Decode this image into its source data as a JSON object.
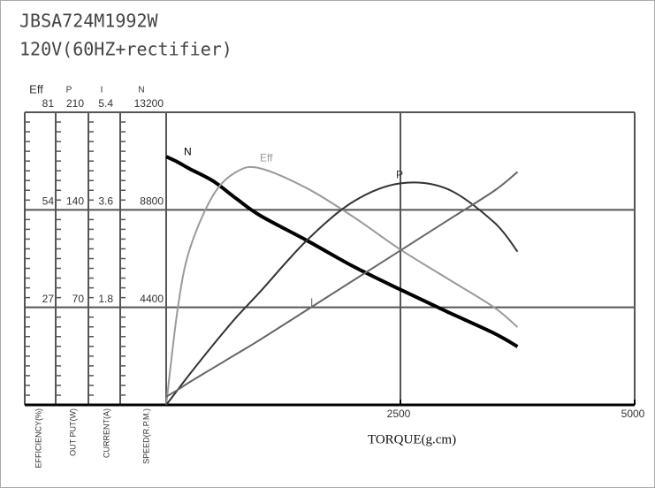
{
  "chart_data": {
    "type": "line",
    "title": "JBSA724M1992W",
    "subtitle": "120V(60HZ+rectifier)",
    "x_label": "TORQUE(g.cm)",
    "x": [
      0,
      125,
      250,
      500,
      750,
      1000,
      1500,
      2000,
      2500,
      3000,
      3500,
      3750
    ],
    "xlim": [
      0,
      5000
    ],
    "xticks": [
      2500,
      5000
    ],
    "grid": true,
    "y_axes": [
      {
        "name": "Eff",
        "label": "EFFICIENCY(%)",
        "ylim": [
          0,
          81
        ],
        "yticks": [
          27,
          54,
          81
        ]
      },
      {
        "name": "P",
        "label": "OUT PUT(W)",
        "ylim": [
          0,
          210
        ],
        "yticks": [
          70,
          140,
          210
        ]
      },
      {
        "name": "I",
        "label": "CURRENT(A)",
        "ylim": [
          0,
          5.4
        ],
        "yticks": [
          1.8,
          3.6,
          5.4
        ]
      },
      {
        "name": "N",
        "label": "SPEED(R.P.M.)",
        "ylim": [
          0,
          13200
        ],
        "yticks": [
          4400,
          8800,
          13200
        ]
      }
    ],
    "series": [
      {
        "name": "N",
        "axis": 3,
        "color": "#000000",
        "values": [
          11200,
          10950,
          10650,
          10100,
          9300,
          8550,
          7420,
          6240,
          5200,
          4200,
          3230,
          2630
        ]
      },
      {
        "name": "Eff",
        "axis": 0,
        "color": "#9a9a9a",
        "values": [
          0,
          27,
          43,
          58,
          64.5,
          65.5,
          60,
          52,
          43,
          35,
          27,
          21.5
        ]
      },
      {
        "name": "P",
        "axis": 1,
        "color": "#333333",
        "values": [
          0,
          11,
          22,
          43,
          63,
          81,
          118,
          146,
          159,
          155,
          131,
          110
        ]
      },
      {
        "name": "I",
        "axis": 2,
        "color": "#666666",
        "values": [
          0.15,
          0.28,
          0.42,
          0.68,
          0.94,
          1.2,
          1.75,
          2.3,
          2.85,
          3.4,
          3.95,
          4.3
        ]
      }
    ]
  }
}
